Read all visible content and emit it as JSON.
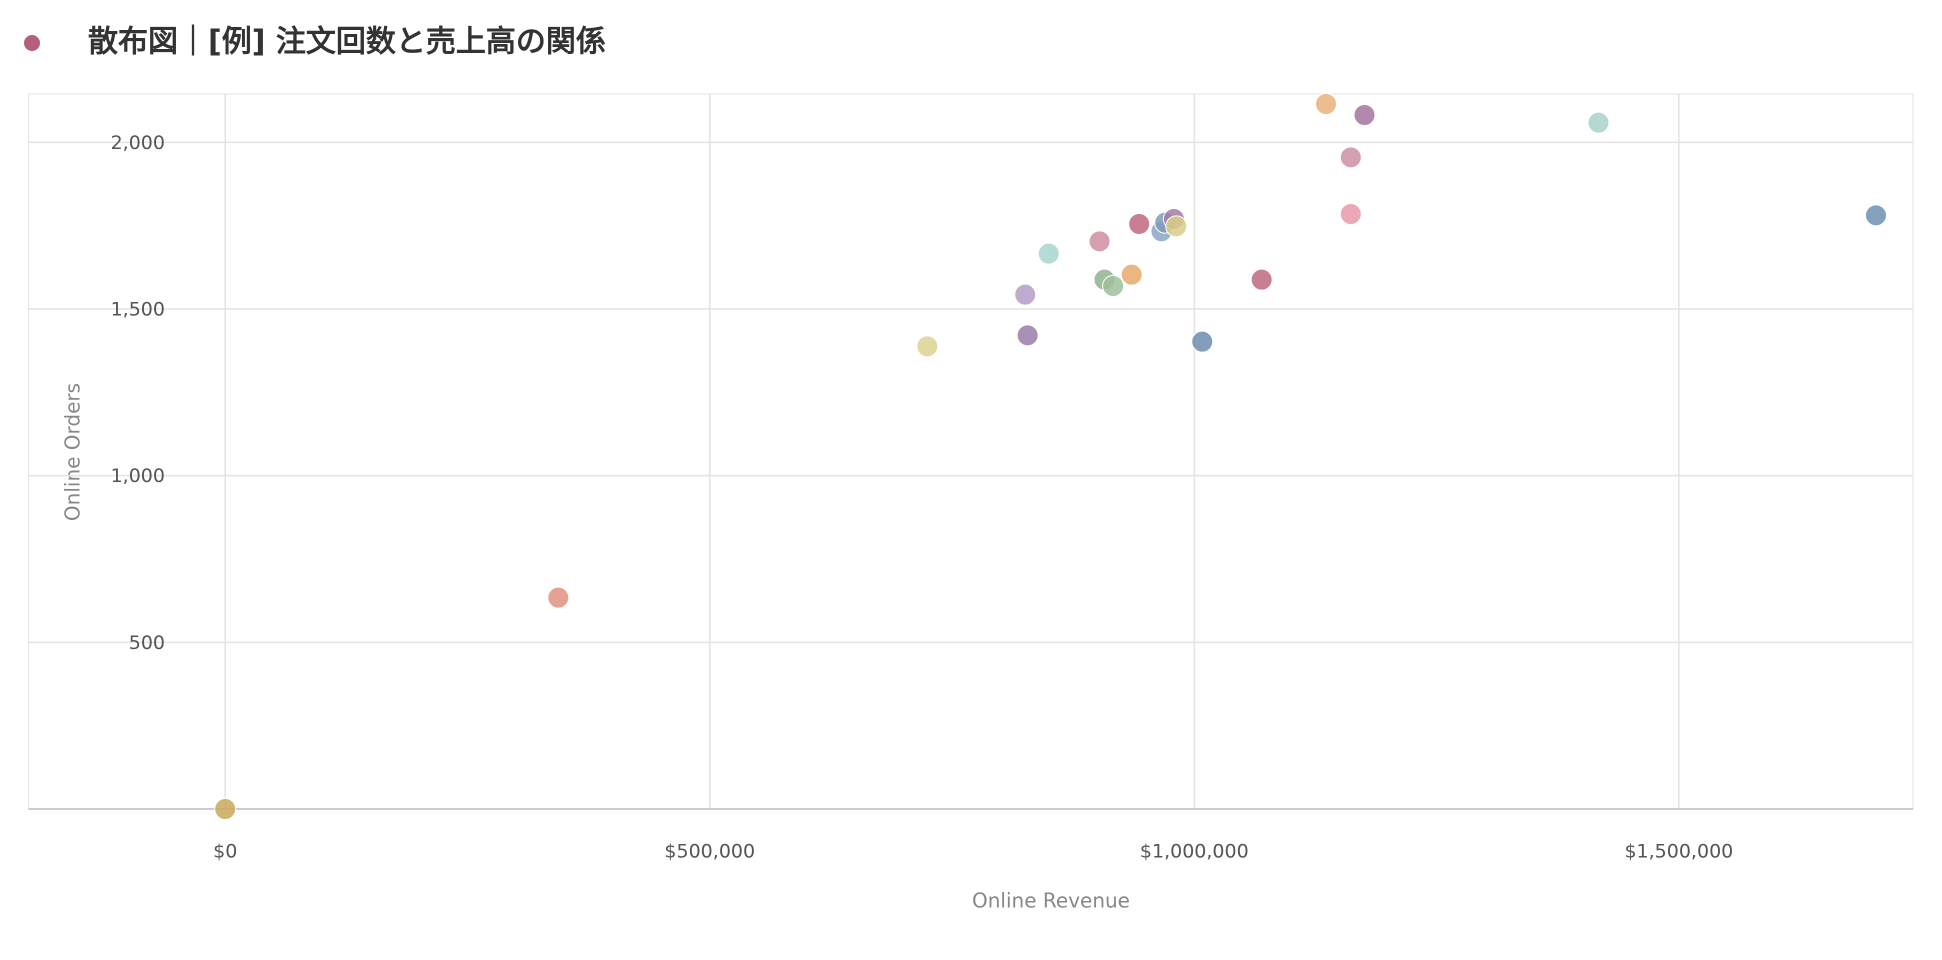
{
  "chart_data": {
    "type": "scatter",
    "title": "散布図｜[例] 注文回数と売上高の関係",
    "title_marker_color": "#b5607a",
    "x_label": "Online Revenue",
    "y_label": "Online Orders",
    "xlim": [
      -203000,
      1741600
    ],
    "ylim": [
      0,
      2145
    ],
    "xticks": [
      {
        "value": 0,
        "label": "$0"
      },
      {
        "value": 500000,
        "label": "$500,000"
      },
      {
        "value": 1000000,
        "label": "$1,000,000"
      },
      {
        "value": 1500000,
        "label": "$1,500,000"
      }
    ],
    "yticks": [
      500,
      {
        "value": 1000,
        "label": "1,000"
      },
      {
        "value": 1500,
        "label": "1,500"
      },
      {
        "value": 2000,
        "label": "2,000"
      }
    ],
    "grid": true,
    "x": [
      0,
      343700,
      724500,
      825500,
      828000,
      849800,
      902200,
      907300,
      916200,
      935400,
      943100,
      966100,
      969900,
      978900,
      981400,
      1008200,
      1069500,
      1135900,
      1161500,
      1161500,
      1175600,
      1417100,
      1703400
    ],
    "y": [
      0,
      634,
      1388,
      1543,
      1421,
      1666,
      1703,
      1588,
      1569,
      1603,
      1755,
      1733,
      1759,
      1770,
      1748,
      1402,
      1588,
      2115,
      1785,
      1955,
      2082,
      2059,
      1781
    ],
    "colors": [
      "#c9a85a",
      "#e0907e",
      "#d8d490",
      "#b39dc6",
      "#9b7ca8",
      "#a8d5cf",
      "#cf8ea0",
      "#8fb38f",
      "#9fbf9c",
      "#e9a96a",
      "#c0677e",
      "#8aa6c4",
      "#7f9bb8",
      "#a67ca3",
      "#d8cf86",
      "#6f8cae",
      "#c0677e",
      "#e9b27a",
      "#e89aa8",
      "#cc8ea2",
      "#a5739f",
      "#a8d1c9",
      "#6f8fae"
    ]
  }
}
